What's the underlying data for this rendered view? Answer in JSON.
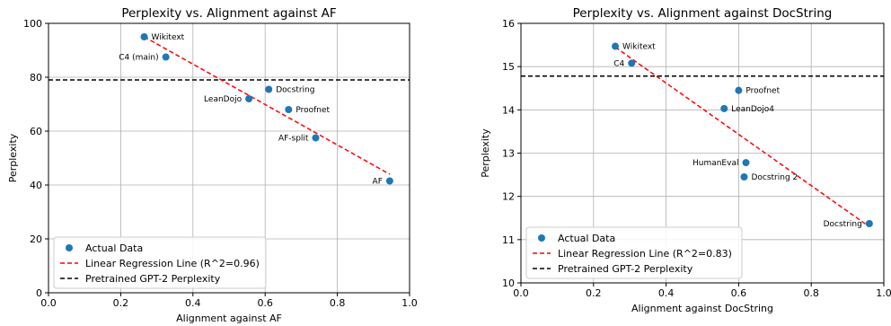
{
  "chart_data": [
    {
      "type": "scatter",
      "title": "Perplexity vs. Alignment against AF",
      "xlabel": "Alignment against AF",
      "ylabel": "Perplexity",
      "xlim": [
        0.0,
        1.0
      ],
      "ylim": [
        0,
        100
      ],
      "xticks": [
        "0.0",
        "0.2",
        "0.4",
        "0.6",
        "0.8",
        "1.0"
      ],
      "yticks": [
        "0",
        "20",
        "40",
        "60",
        "80",
        "100"
      ],
      "grid": true,
      "legend_position": "lower-left",
      "point_color": "#1f77b4",
      "points": [
        {
          "label": "Wikitext",
          "x": 0.265,
          "y": 95.0,
          "label_side": "right"
        },
        {
          "label": "C4 (main)",
          "x": 0.325,
          "y": 87.5,
          "label_side": "left"
        },
        {
          "label": "Docstring",
          "x": 0.61,
          "y": 75.5,
          "label_side": "right"
        },
        {
          "label": "LeanDojo",
          "x": 0.555,
          "y": 72.0,
          "label_side": "left"
        },
        {
          "label": "Proofnet",
          "x": 0.665,
          "y": 68.0,
          "label_side": "right"
        },
        {
          "label": "AF-split",
          "x": 0.74,
          "y": 57.5,
          "label_side": "left"
        },
        {
          "label": "AF",
          "x": 0.945,
          "y": 41.5,
          "label_side": "left"
        }
      ],
      "regression": {
        "x": [
          0.265,
          0.945
        ],
        "y": [
          95.0,
          44.0
        ],
        "color": "#ff0000"
      },
      "baseline": {
        "y": 79.0,
        "color": "#000000"
      },
      "legend": [
        "Actual Data",
        "Linear Regression Line (R^2=0.96)",
        "Pretrained GPT-2 Perplexity"
      ]
    },
    {
      "type": "scatter",
      "title": "Perplexity vs. Alignment against DocString",
      "xlabel": "Alignment against DocString",
      "ylabel": "Perplexity",
      "xlim": [
        0.0,
        1.0
      ],
      "ylim": [
        10,
        16
      ],
      "xticks": [
        "0.0",
        "0.2",
        "0.4",
        "0.6",
        "0.8",
        "1.0"
      ],
      "yticks": [
        "10",
        "11",
        "12",
        "13",
        "14",
        "15",
        "16"
      ],
      "grid": true,
      "legend_position": "lower-left",
      "point_color": "#1f77b4",
      "points": [
        {
          "label": "Wikitext",
          "x": 0.26,
          "y": 15.47,
          "label_side": "right"
        },
        {
          "label": "C4",
          "x": 0.305,
          "y": 15.08,
          "label_side": "left"
        },
        {
          "label": "Proofnet",
          "x": 0.6,
          "y": 14.45,
          "label_side": "right"
        },
        {
          "label": "LeanDojo4",
          "x": 0.56,
          "y": 14.03,
          "label_side": "right"
        },
        {
          "label": "HumanEval",
          "x": 0.62,
          "y": 12.78,
          "label_side": "left"
        },
        {
          "label": "Docstring 2",
          "x": 0.615,
          "y": 12.45,
          "label_side": "right"
        },
        {
          "label": "Docstring",
          "x": 0.96,
          "y": 11.37,
          "label_side": "left"
        }
      ],
      "regression": {
        "x": [
          0.26,
          0.96
        ],
        "y": [
          15.45,
          11.3
        ],
        "color": "#ff0000"
      },
      "baseline": {
        "y": 14.78,
        "color": "#000000"
      },
      "legend": [
        "Actual Data",
        "Linear Regression Line (R^2=0.83)",
        "Pretrained GPT-2 Perplexity"
      ]
    }
  ]
}
